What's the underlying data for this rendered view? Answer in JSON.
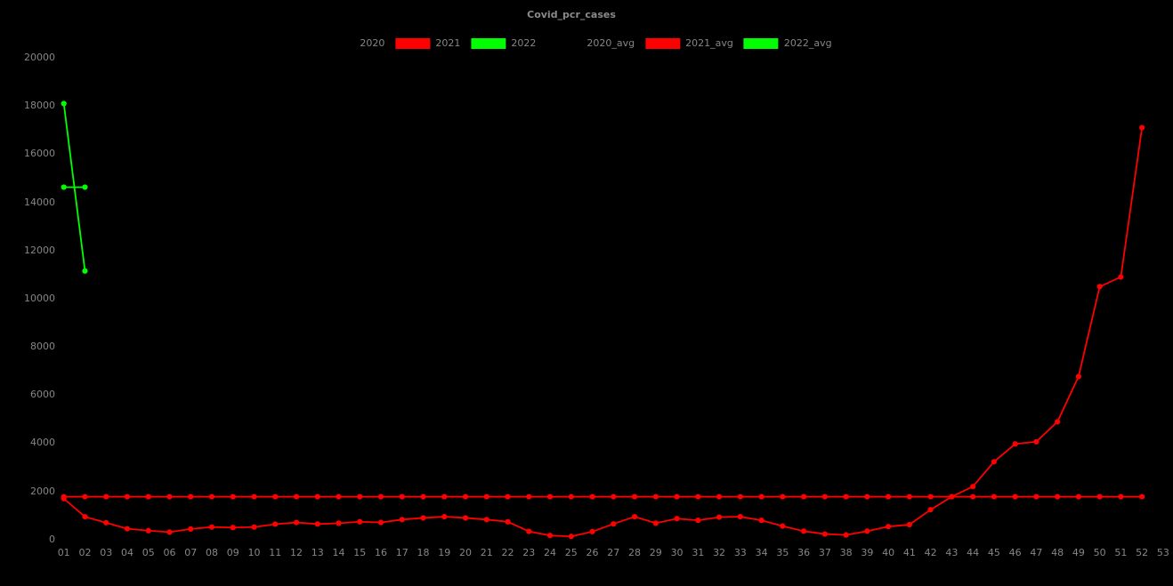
{
  "title": "Covid_pcr_cases",
  "colors": {
    "background": "#000000",
    "tick_text": "#868686",
    "title_text": "#8a8a8a",
    "series_2021": "#ff0000",
    "series_2022": "#00ff00",
    "series_2020": "#000000"
  },
  "legend": {
    "items": [
      {
        "label": "2020",
        "color": "#000000"
      },
      {
        "label": "2021",
        "color": "#ff0000"
      },
      {
        "label": "2022",
        "color": "#00ff00"
      },
      {
        "label": "2020_avg",
        "color": "#000000"
      },
      {
        "label": "2021_avg",
        "color": "#ff0000"
      },
      {
        "label": "2022_avg",
        "color": "#00ff00"
      }
    ]
  },
  "chart_data": {
    "type": "line",
    "title": "Covid_pcr_cases",
    "xlabel": "",
    "ylabel": "",
    "grid": false,
    "legend_position": "top-center",
    "ylim": [
      0,
      20000
    ],
    "y_ticks": [
      0,
      2000,
      4000,
      6000,
      8000,
      10000,
      12000,
      14000,
      16000,
      18000,
      20000
    ],
    "x_tick_labels": [
      "01",
      "02",
      "03",
      "04",
      "05",
      "06",
      "07",
      "08",
      "09",
      "10",
      "11",
      "12",
      "13",
      "14",
      "15",
      "16",
      "17",
      "18",
      "19",
      "20",
      "21",
      "22",
      "23",
      "24",
      "25",
      "26",
      "27",
      "28",
      "29",
      "30",
      "31",
      "32",
      "33",
      "34",
      "35",
      "36",
      "37",
      "38",
      "39",
      "40",
      "41",
      "42",
      "43",
      "44",
      "45",
      "46",
      "47",
      "48",
      "49",
      "50",
      "51",
      "52",
      "53"
    ],
    "series": [
      {
        "name": "2020",
        "color": "#000000",
        "x": [],
        "y": []
      },
      {
        "name": "2021",
        "color": "#ff0000",
        "x": [
          1,
          2,
          3,
          4,
          5,
          6,
          7,
          8,
          9,
          10,
          11,
          12,
          13,
          14,
          15,
          16,
          17,
          18,
          19,
          20,
          21,
          22,
          23,
          24,
          25,
          26,
          27,
          28,
          29,
          30,
          31,
          32,
          33,
          34,
          35,
          36,
          37,
          38,
          39,
          40,
          41,
          42,
          43,
          44,
          45,
          46,
          47,
          48,
          49,
          50,
          51,
          52
        ],
        "y": [
          1700,
          950,
          700,
          450,
          370,
          310,
          440,
          520,
          500,
          520,
          640,
          710,
          645,
          680,
          740,
          710,
          830,
          900,
          950,
          900,
          830,
          740,
          340,
          170,
          130,
          330,
          650,
          950,
          680,
          870,
          800,
          930,
          950,
          800,
          560,
          350,
          230,
          190,
          350,
          540,
          620,
          1240,
          1780,
          2200,
          3230,
          3970,
          4060,
          4890,
          6770,
          10500,
          10900,
          17100
        ]
      },
      {
        "name": "2022",
        "color": "#00ff00",
        "x": [
          1,
          2
        ],
        "y": [
          18100,
          11150
        ]
      },
      {
        "name": "2020_avg",
        "color": "#000000",
        "x": [],
        "y": []
      },
      {
        "name": "2021_avg",
        "color": "#ff0000",
        "x": [
          1,
          2,
          3,
          4,
          5,
          6,
          7,
          8,
          9,
          10,
          11,
          12,
          13,
          14,
          15,
          16,
          17,
          18,
          19,
          20,
          21,
          22,
          23,
          24,
          25,
          26,
          27,
          28,
          29,
          30,
          31,
          32,
          33,
          34,
          35,
          36,
          37,
          38,
          39,
          40,
          41,
          42,
          43,
          44,
          45,
          46,
          47,
          48,
          49,
          50,
          51,
          52
        ],
        "y": [
          1780,
          1780,
          1780,
          1780,
          1780,
          1780,
          1780,
          1780,
          1780,
          1780,
          1780,
          1780,
          1780,
          1780,
          1780,
          1780,
          1780,
          1780,
          1780,
          1780,
          1780,
          1780,
          1780,
          1780,
          1780,
          1780,
          1780,
          1780,
          1780,
          1780,
          1780,
          1780,
          1780,
          1780,
          1780,
          1780,
          1780,
          1780,
          1780,
          1780,
          1780,
          1780,
          1780,
          1780,
          1780,
          1780,
          1780,
          1780,
          1780,
          1780,
          1780,
          1780
        ]
      },
      {
        "name": "2022_avg",
        "color": "#00ff00",
        "x": [
          1,
          2
        ],
        "y": [
          14630,
          14630
        ]
      }
    ]
  }
}
